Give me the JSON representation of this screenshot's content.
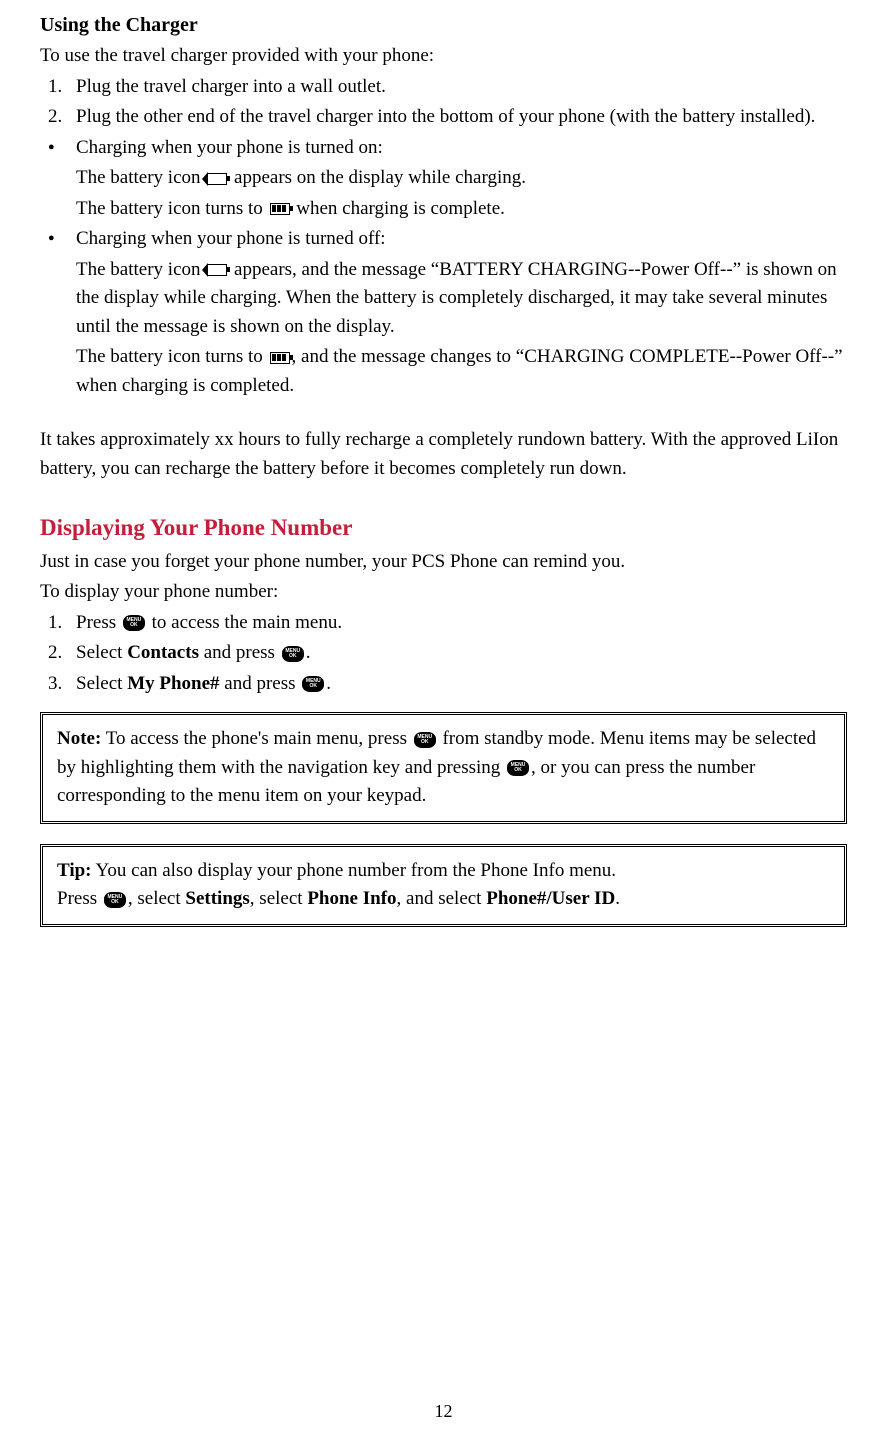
{
  "section1": {
    "heading": "Using the Charger",
    "intro": "To use the travel charger provided with your phone:",
    "step1": "Plug the travel charger into a wall outlet.",
    "step2": "Plug the other end of the travel charger into the bottom of your phone (with the battery installed).",
    "bullet1_line1": "Charging when your phone is turned on:",
    "bullet1_line2a": "The battery icon ",
    "bullet1_line2b": " appears on the display while charging.",
    "bullet1_line3a": "The battery icon turns to ",
    "bullet1_line3b": " when charging is complete.",
    "bullet2_line1": "Charging when your phone is turned off:",
    "bullet2_line2a": "The battery icon ",
    "bullet2_line2b": " appears, and the message “BATTERY CHARGING--Power Off--” is shown on the display while charging. When the battery is completely discharged, it may take several minutes until the message is shown on the display.",
    "bullet2_line3a": "The battery icon turns to ",
    "bullet2_line3b": ", and the message changes to “CHARGING COMPLETE--Power Off--” when charging is completed.",
    "paragraph": "It takes approximately xx hours to fully recharge a completely rundown battery. With the approved LiIon battery, you can recharge the battery before it becomes completely run down."
  },
  "section2": {
    "heading": "Displaying Your Phone Number",
    "intro": "Just in case you forget your phone number, your PCS Phone can remind you.",
    "prompt": "To display your phone number:",
    "step1a": "Press ",
    "step1b": " to access the main menu.",
    "step2a": "Select ",
    "step2bold": "Contacts",
    "step2b": " and press ",
    "step2c": ".",
    "step3a": "Select ",
    "step3bold": "My Phone#",
    "step3b": " and press ",
    "step3c": "."
  },
  "note": {
    "label": "Note:",
    "text1": " To access the phone's main menu, press ",
    "text2": " from standby mode. Menu items may be selected by highlighting them with the navigation key and pressing ",
    "text3": ", or you can press the number corresponding to the menu item on your keypad."
  },
  "tip": {
    "label": "Tip:",
    "text1": " You can also display your phone number from the Phone Info menu.",
    "line2a": "Press ",
    "line2b": ", select ",
    "bold1": "Settings",
    "line2c": ", select ",
    "bold2": "Phone Info",
    "line2d": ", and select ",
    "bold3": "Phone#/User ID",
    "line2e": "."
  },
  "page": "12",
  "menuIcon": {
    "top": "MENU",
    "bottom": "OK"
  }
}
